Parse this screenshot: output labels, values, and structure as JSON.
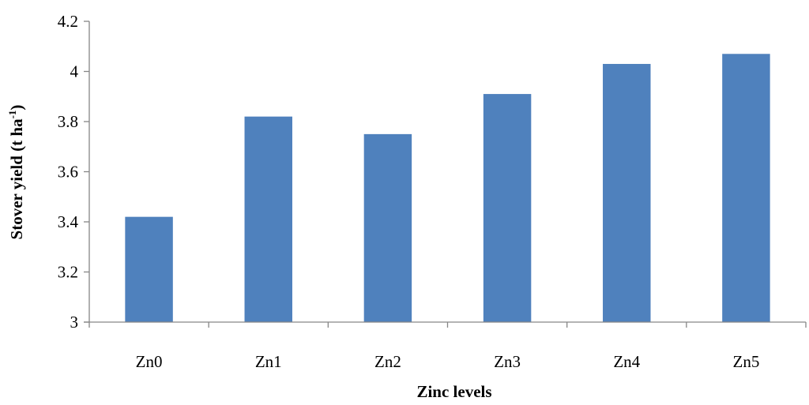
{
  "chart_data": {
    "type": "bar",
    "title": "",
    "xlabel": "Zinc levels",
    "ylabel": {
      "main": "Stover yield (t ha",
      "superscript": "-1",
      "close": ")"
    },
    "categories": [
      "Zn0",
      "Zn1",
      "Zn2",
      "Zn3",
      "Zn4",
      "Zn5"
    ],
    "series": [
      {
        "values": [
          3.42,
          3.82,
          3.75,
          3.91,
          4.03,
          4.07
        ],
        "color": "#4f81bd"
      }
    ],
    "ylim": [
      3,
      4.2
    ],
    "yticks": [
      "3",
      "3.2",
      "3.4",
      "3.6",
      "3.8",
      "4",
      "4.2"
    ],
    "grid": false,
    "legend": "none",
    "colors": {
      "bar": "#4f81bd",
      "axis": "#868686",
      "text": "#000000"
    }
  }
}
